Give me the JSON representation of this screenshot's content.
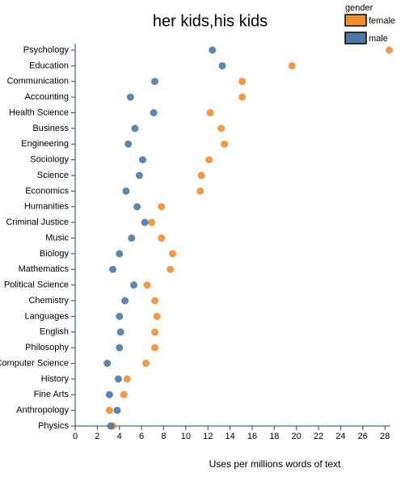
{
  "chart_data": {
    "type": "dot",
    "title": "her kids,his kids",
    "x_label": "Uses per millions words of text",
    "legend_title": "gender",
    "legend_position": "top-right",
    "categories": [
      "Psychology",
      "Education",
      "Communication",
      "Accounting",
      "Health Science",
      "Business",
      "Engineering",
      "Sociology",
      "Science",
      "Economics",
      "Humanities",
      "Criminal Justice",
      "Music",
      "Biology",
      "Mathematics",
      "Political Science",
      "Chemistry",
      "Languages",
      "English",
      "Philosophy",
      "Computer Science",
      "History",
      "Fine Arts",
      "Anthropology",
      "Physics"
    ],
    "series": [
      {
        "name": "female",
        "color": "#f28e2c",
        "values": [
          28.4,
          19.6,
          15.1,
          15.1,
          12.2,
          13.2,
          13.5,
          12.1,
          11.4,
          11.3,
          7.8,
          6.9,
          7.8,
          8.8,
          8.6,
          6.5,
          7.2,
          7.4,
          7.2,
          7.2,
          6.4,
          4.7,
          4.4,
          3.1,
          3.4
        ]
      },
      {
        "name": "male",
        "color": "#4e79a7",
        "values": [
          12.4,
          13.3,
          7.2,
          5.0,
          7.1,
          5.4,
          4.8,
          6.1,
          5.8,
          4.6,
          5.6,
          6.3,
          5.1,
          4.0,
          3.4,
          5.3,
          4.5,
          4.0,
          4.1,
          4.0,
          2.9,
          3.9,
          3.1,
          3.8,
          3.2
        ]
      }
    ],
    "xlim": [
      0,
      28.5
    ],
    "xticks": [
      0,
      2,
      4,
      6,
      8,
      10,
      12,
      14,
      16,
      18,
      20,
      22,
      24,
      26,
      28
    ]
  }
}
